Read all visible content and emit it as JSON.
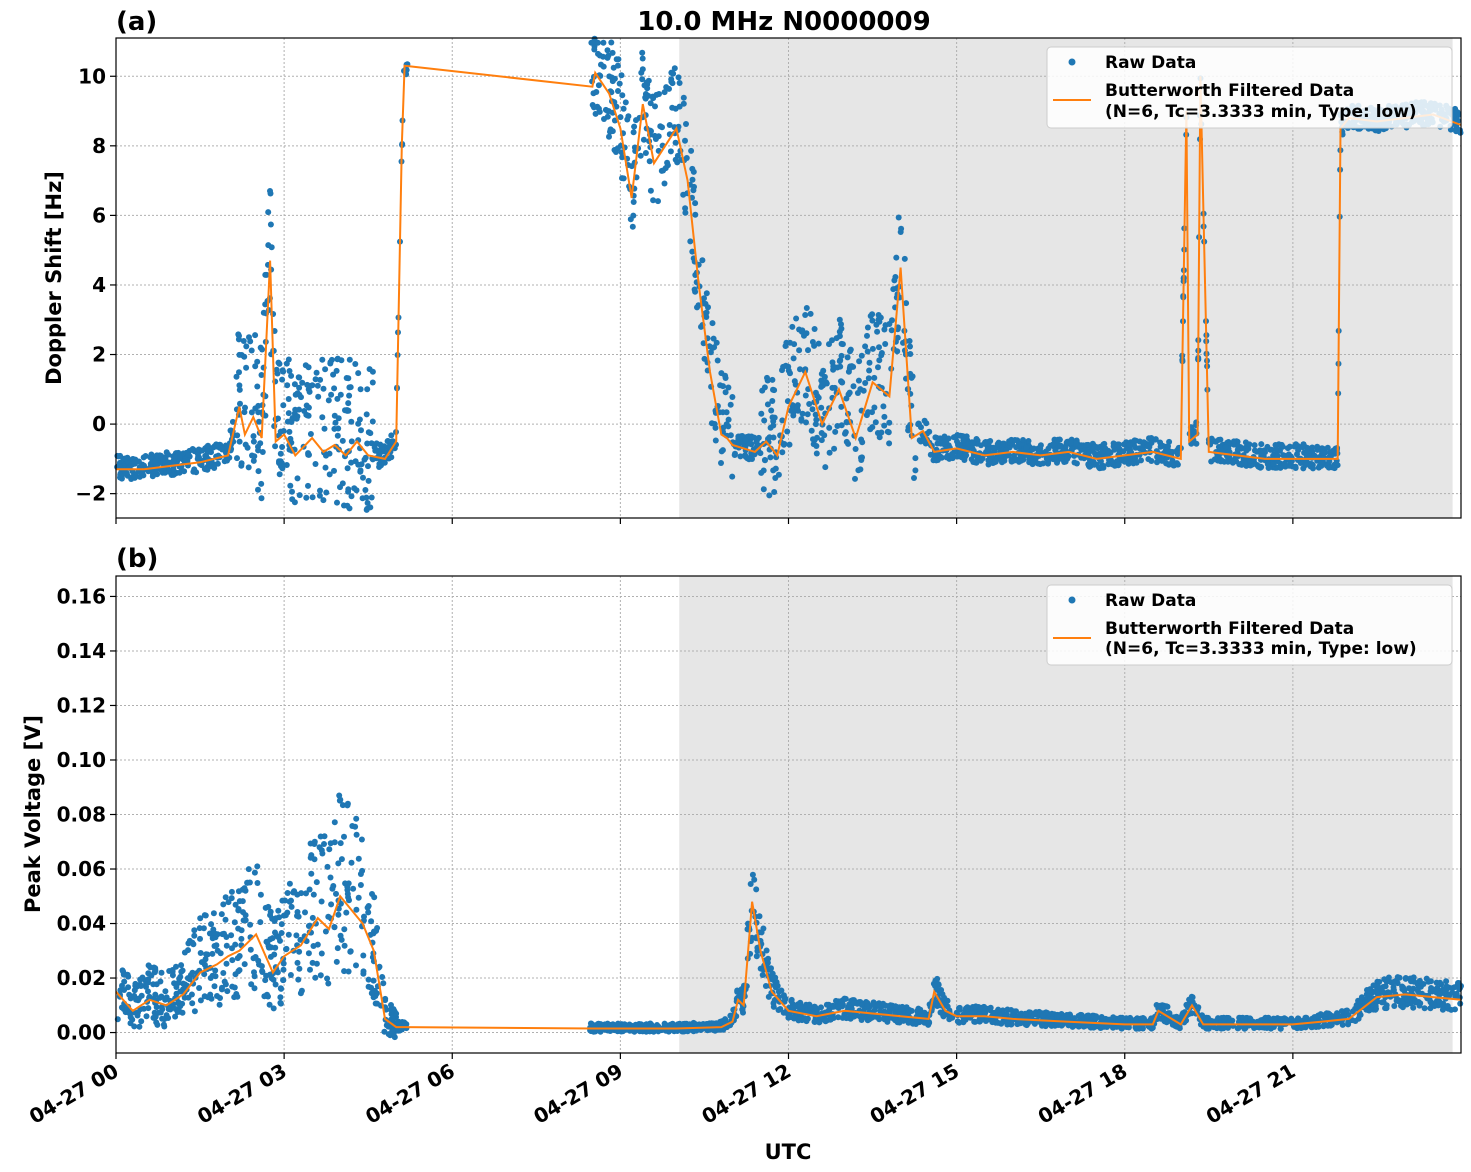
{
  "figure_title": "10.0 MHz N0000009",
  "xlabel": "UTC",
  "x_tick_labels": [
    "04-27 00",
    "04-27 03",
    "04-27 06",
    "04-27 09",
    "04-27 12",
    "04-27 15",
    "04-27 18",
    "04-27 21"
  ],
  "legend": {
    "raw": "Raw Data",
    "filtered_line1": "Butterworth Filtered Data",
    "filtered_line2": "(N=6, Tc=3.3333 min, Type: low)"
  },
  "colors": {
    "raw": "#1f77b4",
    "filtered": "#ff7f0e",
    "night_shading": "#e6e6e6",
    "grid": "#b0b0b0"
  },
  "chart_data": [
    {
      "type": "scatter",
      "panel_label": "(a)",
      "ylabel": "Doppler Shift [Hz]",
      "xlim_hours": [
        0,
        24
      ],
      "ylim": [
        -2.7,
        11.1
      ],
      "y_ticks": [
        -2,
        0,
        2,
        4,
        6,
        8,
        10
      ],
      "y_tick_labels": [
        "−2",
        "0",
        "2",
        "4",
        "6",
        "8",
        "10"
      ],
      "grid": true,
      "legend_position": "top-right",
      "shaded_span_hours": [
        10.05,
        23.85
      ],
      "series": [
        {
          "name": "Butterworth Filtered Data",
          "kind": "line",
          "x_hours": [
            0,
            0.5,
            1,
            1.5,
            2,
            2.2,
            2.3,
            2.45,
            2.6,
            2.75,
            2.85,
            3.0,
            3.2,
            3.5,
            3.7,
            3.9,
            4.1,
            4.3,
            4.5,
            4.8,
            5.0,
            5.1,
            5.15,
            8.5,
            8.55,
            8.8,
            9.0,
            9.2,
            9.4,
            9.6,
            9.8,
            10.0,
            10.2,
            10.4,
            10.6,
            10.8,
            10.9,
            11.0,
            11.2,
            11.4,
            11.6,
            11.8,
            12.0,
            12.3,
            12.6,
            12.9,
            13.2,
            13.5,
            13.8,
            14.0,
            14.2,
            14.4,
            14.6,
            15,
            15.5,
            16,
            16.5,
            17,
            17.5,
            18,
            18.5,
            19.0,
            19.1,
            19.15,
            19.3,
            19.35,
            19.5,
            20,
            20.5,
            21,
            21.5,
            21.8,
            21.85,
            22.0,
            22.5,
            23,
            23.5,
            24
          ],
          "y": [
            -1.3,
            -1.3,
            -1.2,
            -1.1,
            -0.9,
            0.5,
            -0.3,
            0.2,
            -0.4,
            4.7,
            -0.5,
            -0.3,
            -0.9,
            -0.4,
            -0.8,
            -0.6,
            -0.9,
            -0.5,
            -0.9,
            -1.0,
            -0.5,
            8.0,
            10.3,
            9.7,
            10.1,
            9.5,
            8.5,
            6.5,
            9.2,
            7.5,
            8.0,
            8.5,
            7.0,
            4.0,
            1.5,
            -0.3,
            -0.4,
            -0.6,
            -0.7,
            -0.8,
            -0.5,
            -0.9,
            0.5,
            1.5,
            0.0,
            1.0,
            -0.4,
            1.2,
            0.8,
            4.5,
            -0.4,
            -0.2,
            -0.8,
            -0.7,
            -0.9,
            -0.8,
            -0.9,
            -0.8,
            -1.0,
            -0.9,
            -0.8,
            -1.0,
            9.0,
            -0.5,
            -0.3,
            10.0,
            -0.8,
            -0.9,
            -1.0,
            -1.0,
            -1.0,
            -1.0,
            8.5,
            8.8,
            8.7,
            8.8,
            8.9,
            8.6
          ]
        }
      ]
    },
    {
      "type": "scatter",
      "panel_label": "(b)",
      "ylabel": "Peak Voltage [V]",
      "xlim_hours": [
        0,
        24
      ],
      "ylim": [
        -0.0075,
        0.1675
      ],
      "y_ticks": [
        0.0,
        0.02,
        0.04,
        0.06,
        0.08,
        0.1,
        0.12,
        0.14,
        0.16
      ],
      "y_tick_labels": [
        "0.00",
        "0.02",
        "0.04",
        "0.06",
        "0.08",
        "0.10",
        "0.12",
        "0.14",
        "0.16"
      ],
      "grid": true,
      "legend_position": "top-right",
      "shaded_span_hours": [
        10.05,
        23.85
      ],
      "series": [
        {
          "name": "Butterworth Filtered Data",
          "kind": "line",
          "x_hours": [
            0,
            0.3,
            0.6,
            0.9,
            1.2,
            1.5,
            1.8,
            2.0,
            2.2,
            2.5,
            2.8,
            3.0,
            3.3,
            3.6,
            3.8,
            4.0,
            4.2,
            4.4,
            4.6,
            4.8,
            5.0,
            5.15,
            8.5,
            9.0,
            10.0,
            10.8,
            11.0,
            11.1,
            11.2,
            11.35,
            11.5,
            11.7,
            12.0,
            12.5,
            13,
            13.5,
            14,
            14.5,
            14.6,
            14.8,
            15,
            15.5,
            16,
            17,
            18,
            18.5,
            18.6,
            19.0,
            19.2,
            19.4,
            19.6,
            20,
            21,
            21.5,
            22.0,
            22.5,
            23,
            23.5,
            24
          ],
          "y": [
            0.015,
            0.008,
            0.012,
            0.01,
            0.014,
            0.022,
            0.025,
            0.028,
            0.03,
            0.036,
            0.022,
            0.028,
            0.032,
            0.042,
            0.038,
            0.05,
            0.045,
            0.04,
            0.03,
            0.005,
            0.002,
            0.002,
            0.0015,
            0.0015,
            0.0015,
            0.002,
            0.004,
            0.012,
            0.01,
            0.048,
            0.03,
            0.015,
            0.008,
            0.006,
            0.008,
            0.007,
            0.006,
            0.005,
            0.015,
            0.008,
            0.006,
            0.006,
            0.005,
            0.004,
            0.003,
            0.003,
            0.008,
            0.003,
            0.01,
            0.003,
            0.003,
            0.003,
            0.003,
            0.004,
            0.005,
            0.013,
            0.014,
            0.013,
            0.012
          ]
        }
      ]
    }
  ]
}
